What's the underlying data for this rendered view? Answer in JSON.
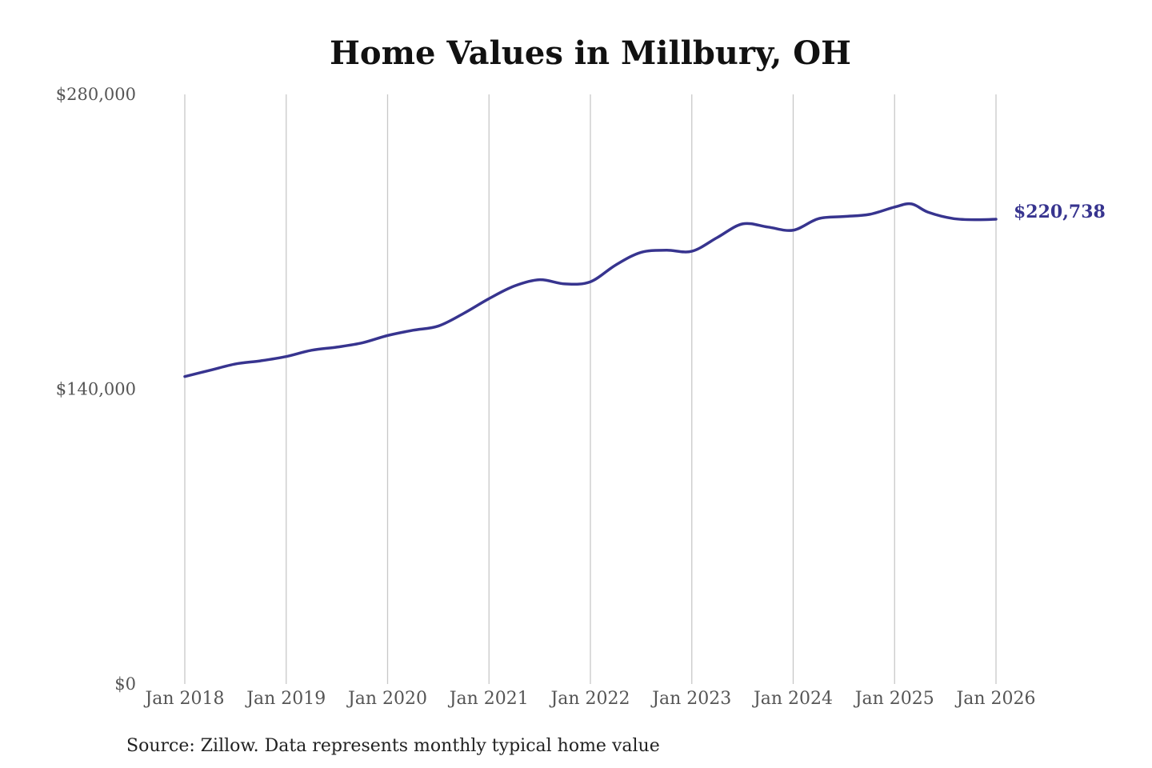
{
  "chart_data": {
    "type": "line",
    "title": "Home Values in Millbury, OH",
    "xlabel": "",
    "ylabel": "",
    "ylim": [
      0,
      280000
    ],
    "y_ticks": [
      {
        "value": 0,
        "label": "$0"
      },
      {
        "value": 140000,
        "label": "$140,000"
      },
      {
        "value": 280000,
        "label": "$280,000"
      }
    ],
    "x_ticks": [
      {
        "x": "2018-01",
        "label": "Jan 2018"
      },
      {
        "x": "2019-01",
        "label": "Jan 2019"
      },
      {
        "x": "2020-01",
        "label": "Jan 2020"
      },
      {
        "x": "2021-01",
        "label": "Jan 2021"
      },
      {
        "x": "2022-01",
        "label": "Jan 2022"
      },
      {
        "x": "2023-01",
        "label": "Jan 2023"
      },
      {
        "x": "2024-01",
        "label": "Jan 2024"
      },
      {
        "x": "2025-01",
        "label": "Jan 2025"
      },
      {
        "x": "2026-01",
        "label": "Jan 2026"
      }
    ],
    "grid": {
      "vertical": true,
      "horizontal": false
    },
    "legend": "none",
    "line_color": "#37348f",
    "end_label": "$220,738",
    "series": [
      {
        "x": [
          "2018-01",
          "2018-04",
          "2018-07",
          "2018-10",
          "2019-01",
          "2019-04",
          "2019-07",
          "2019-10",
          "2020-01",
          "2020-04",
          "2020-07",
          "2020-10",
          "2021-01",
          "2021-04",
          "2021-07",
          "2021-10",
          "2022-01",
          "2022-04",
          "2022-07",
          "2022-10",
          "2023-01",
          "2023-04",
          "2023-07",
          "2023-10",
          "2024-01",
          "2024-04",
          "2024-07",
          "2024-10",
          "2025-01",
          "2025-03",
          "2025-05",
          "2025-08",
          "2025-11",
          "2026-01"
        ],
        "values": [
          146000,
          149000,
          152000,
          153500,
          155500,
          158500,
          160000,
          162000,
          165500,
          168000,
          170000,
          176000,
          183000,
          189000,
          192000,
          190000,
          191000,
          199000,
          205000,
          206000,
          205500,
          212000,
          218500,
          217000,
          215500,
          221000,
          222000,
          223000,
          226500,
          228000,
          224000,
          221000,
          220500,
          220738
        ]
      }
    ]
  },
  "footer": {
    "source": "Source: Zillow. Data represents monthly typical home value"
  }
}
